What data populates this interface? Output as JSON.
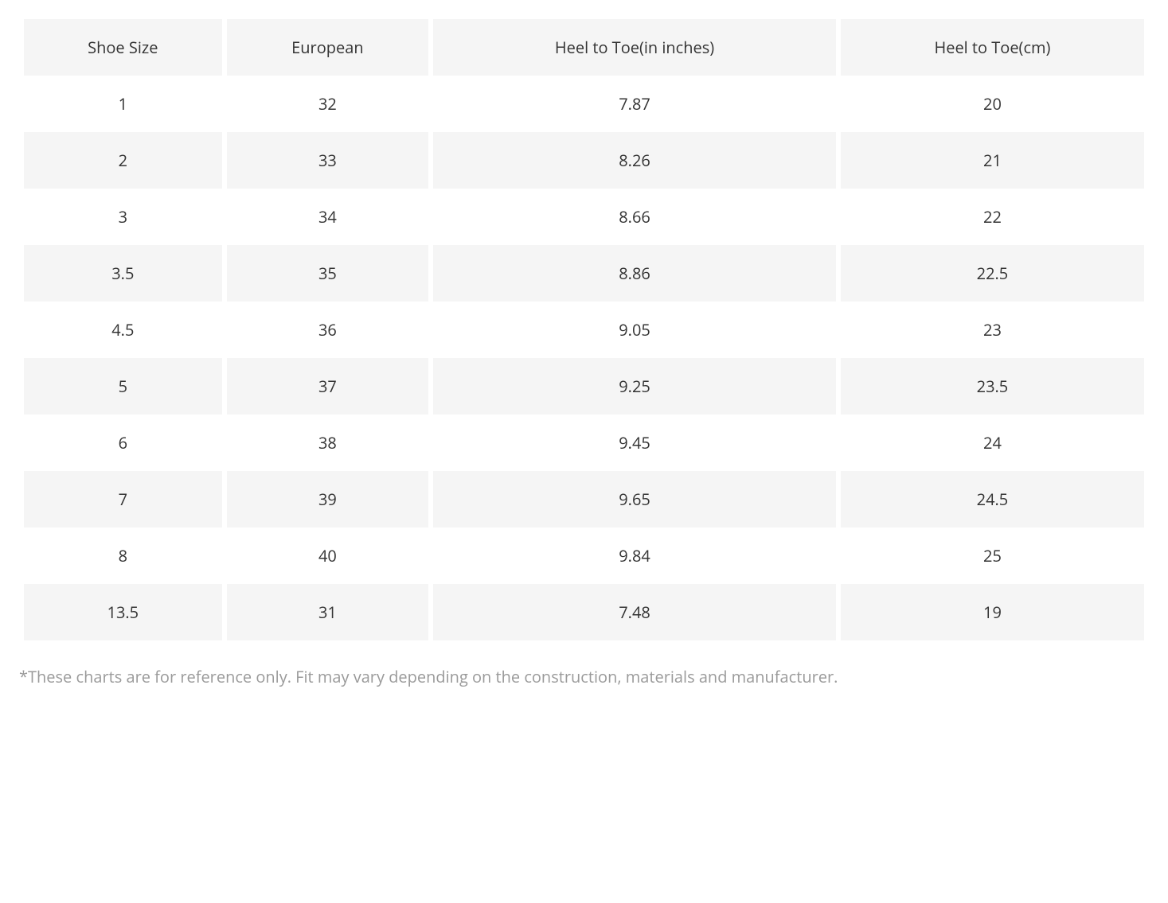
{
  "table": {
    "columns": [
      "Shoe Size",
      "European",
      "Heel to Toe(in inches)",
      "Heel to Toe(cm)"
    ],
    "rows": [
      [
        "1",
        "32",
        "7.87",
        "20"
      ],
      [
        "2",
        "33",
        "8.26",
        "21"
      ],
      [
        "3",
        "34",
        "8.66",
        "22"
      ],
      [
        "3.5",
        "35",
        "8.86",
        "22.5"
      ],
      [
        "4.5",
        "36",
        "9.05",
        "23"
      ],
      [
        "5",
        "37",
        "9.25",
        "23.5"
      ],
      [
        "6",
        "38",
        "9.45",
        "24"
      ],
      [
        "7",
        "39",
        "9.65",
        "24.5"
      ],
      [
        "8",
        "40",
        "9.84",
        "25"
      ],
      [
        "13.5",
        "31",
        "7.48",
        "19"
      ]
    ],
    "header_bg": "#f5f5f5",
    "row_alt_bg": "#f5f5f5",
    "row_bg": "#ffffff",
    "text_color": "#333333",
    "font_size_header": 20,
    "font_size_cell": 20,
    "cell_padding": "22px 10px",
    "border_spacing": "6px 0"
  },
  "footnote": "*These charts are for reference only. Fit may vary depending on the construction, materials and manufacturer.",
  "footnote_color": "#9a9a9a",
  "footnote_font_size": 20,
  "background_color": "#ffffff"
}
